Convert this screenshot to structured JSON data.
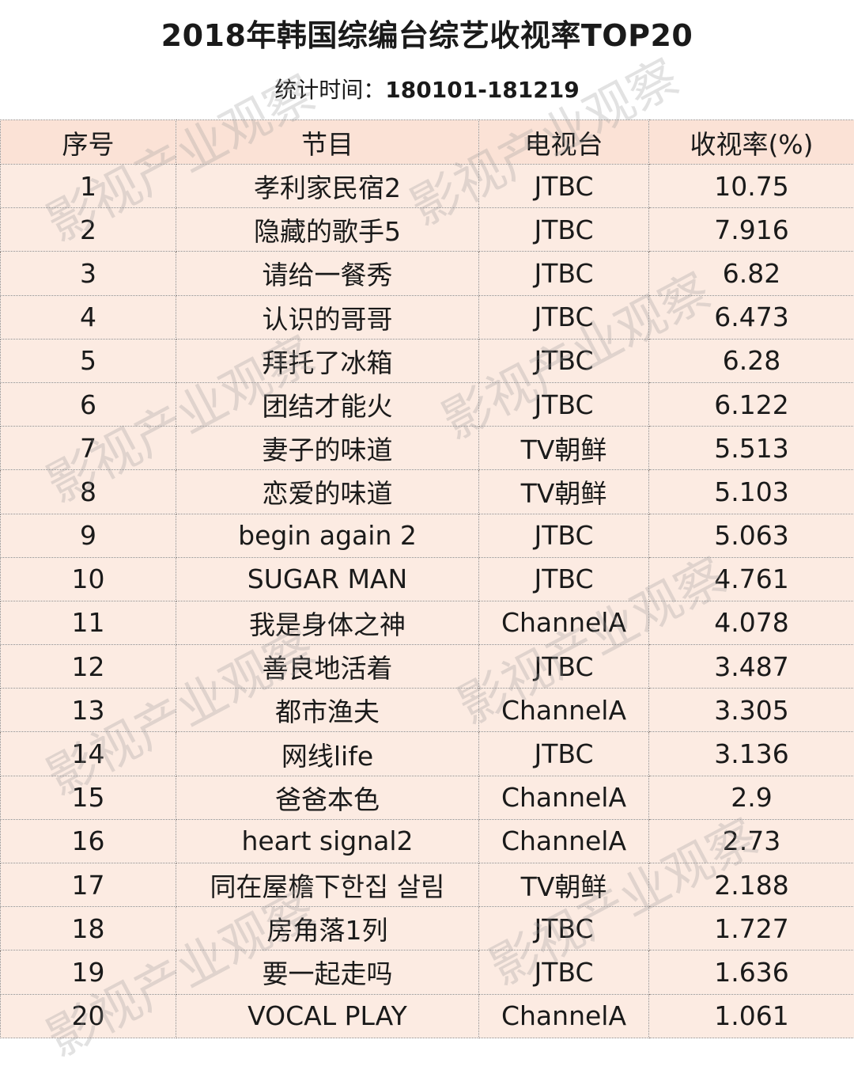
{
  "chart_data": {
    "type": "table",
    "title": "2018年韩国综编台综艺收视率TOP20",
    "subtitle_label": "统计时间：",
    "subtitle_value": "180101-181219",
    "columns": [
      "序号",
      "节目",
      "电视台",
      "收视率(%)"
    ],
    "rows": [
      [
        "1",
        "孝利家民宿2",
        "JTBC",
        "10.75"
      ],
      [
        "2",
        "隐藏的歌手5",
        "JTBC",
        "7.916"
      ],
      [
        "3",
        "请给一餐秀",
        "JTBC",
        "6.82"
      ],
      [
        "4",
        "认识的哥哥",
        "JTBC",
        "6.473"
      ],
      [
        "5",
        "拜托了冰箱",
        "JTBC",
        "6.28"
      ],
      [
        "6",
        "团结才能火",
        "JTBC",
        "6.122"
      ],
      [
        "7",
        "妻子的味道",
        "TV朝鲜",
        "5.513"
      ],
      [
        "8",
        "恋爱的味道",
        "TV朝鲜",
        "5.103"
      ],
      [
        "9",
        "begin again 2",
        "JTBC",
        "5.063"
      ],
      [
        "10",
        "SUGAR MAN",
        "JTBC",
        "4.761"
      ],
      [
        "11",
        "我是身体之神",
        "ChannelA",
        "4.078"
      ],
      [
        "12",
        "善良地活着",
        "JTBC",
        "3.487"
      ],
      [
        "13",
        "都市渔夫",
        "ChannelA",
        "3.305"
      ],
      [
        "14",
        "网线life",
        "JTBC",
        "3.136"
      ],
      [
        "15",
        "爸爸本色",
        "ChannelA",
        "2.9"
      ],
      [
        "16",
        "heart signal2",
        "ChannelA",
        "2.73"
      ],
      [
        "17",
        "同在屋檐下한집 살림",
        "TV朝鲜",
        "2.188"
      ],
      [
        "18",
        "房角落1列",
        "JTBC",
        "1.727"
      ],
      [
        "19",
        "要一起走吗",
        "JTBC",
        "1.636"
      ],
      [
        "20",
        "VOCAL PLAY",
        "ChannelA",
        "1.061"
      ]
    ],
    "colors": {
      "header_bg": "#fbe2d6",
      "row_bg": "#fcebe2",
      "border": "#8a7f7a"
    }
  },
  "watermark": "影视产业观察"
}
